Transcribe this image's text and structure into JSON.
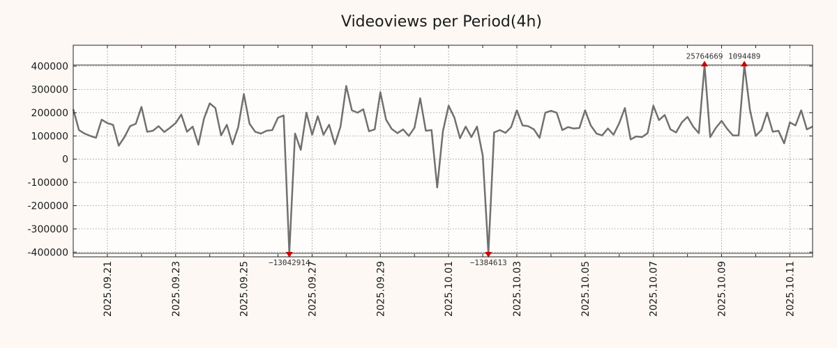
{
  "chart_data": {
    "type": "line",
    "title": "Videoviews per Period(4h)",
    "xlabel": "",
    "ylabel": "",
    "ylim": [
      -420000,
      490000
    ],
    "xlim": [
      "2025-09-20T00:00",
      "2025-10-11T16:00"
    ],
    "yticks": [
      -400000,
      -300000,
      -200000,
      -100000,
      0,
      100000,
      200000,
      300000,
      400000
    ],
    "ytick_labels": [
      "-400000",
      "-300000",
      "-200000",
      "-100000",
      "0",
      "100000",
      "200000",
      "300000",
      "400000"
    ],
    "xticks": [
      "2025-09-21",
      "2025-09-23",
      "2025-09-25",
      "2025-09-27",
      "2025-09-29",
      "2025-10-01",
      "2025-10-03",
      "2025-10-05",
      "2025-10-07",
      "2025-10-09",
      "2025-10-11"
    ],
    "xtick_labels": [
      "2025.09.21",
      "2025.09.23",
      "2025.09.25",
      "2025.09.27",
      "2025.09.29",
      "2025.10.01",
      "2025.10.03",
      "2025.10.05",
      "2025.10.07",
      "2025.10.09",
      "2025.10.11"
    ],
    "grid": true,
    "clip_lines": [
      405000,
      -405000
    ],
    "series": [
      {
        "name": "Videoviews",
        "color": "#707070",
        "points": [
          [
            "2025-09-20T00:00",
            215000
          ],
          [
            "2025-09-20T04:00",
            125000
          ],
          [
            "2025-09-20T08:00",
            110000
          ],
          [
            "2025-09-20T12:00",
            100000
          ],
          [
            "2025-09-20T16:00",
            92000
          ],
          [
            "2025-09-20T20:00",
            170000
          ],
          [
            "2025-09-21T00:00",
            155000
          ],
          [
            "2025-09-21T04:00",
            148000
          ],
          [
            "2025-09-21T08:00",
            58000
          ],
          [
            "2025-09-21T12:00",
            95000
          ],
          [
            "2025-09-21T16:00",
            142000
          ],
          [
            "2025-09-21T20:00",
            152000
          ],
          [
            "2025-09-22T00:00",
            225000
          ],
          [
            "2025-09-22T04:00",
            118000
          ],
          [
            "2025-09-22T08:00",
            122000
          ],
          [
            "2025-09-22T12:00",
            142000
          ],
          [
            "2025-09-22T16:00",
            117000
          ],
          [
            "2025-09-22T20:00",
            135000
          ],
          [
            "2025-09-23T00:00",
            155000
          ],
          [
            "2025-09-23T04:00",
            192000
          ],
          [
            "2025-09-23T08:00",
            118000
          ],
          [
            "2025-09-23T12:00",
            140000
          ],
          [
            "2025-09-23T16:00",
            62000
          ],
          [
            "2025-09-23T20:00",
            175000
          ],
          [
            "2025-09-24T00:00",
            240000
          ],
          [
            "2025-09-24T04:00",
            220000
          ],
          [
            "2025-09-24T08:00",
            102000
          ],
          [
            "2025-09-24T12:00",
            148000
          ],
          [
            "2025-09-24T16:00",
            64000
          ],
          [
            "2025-09-24T20:00",
            138000
          ],
          [
            "2025-09-25T00:00",
            280000
          ],
          [
            "2025-09-25T04:00",
            152000
          ],
          [
            "2025-09-25T08:00",
            118000
          ],
          [
            "2025-09-25T12:00",
            110000
          ],
          [
            "2025-09-25T16:00",
            122000
          ],
          [
            "2025-09-25T20:00",
            125000
          ],
          [
            "2025-09-26T00:00",
            178000
          ],
          [
            "2025-09-26T04:00",
            188000
          ],
          [
            "2025-09-26T08:00",
            -405000
          ],
          [
            "2025-09-26T12:00",
            110000
          ],
          [
            "2025-09-26T16:00",
            40000
          ],
          [
            "2025-09-26T20:00",
            200000
          ],
          [
            "2025-09-27T00:00",
            105000
          ],
          [
            "2025-09-27T04:00",
            185000
          ],
          [
            "2025-09-27T08:00",
            105000
          ],
          [
            "2025-09-27T12:00",
            148000
          ],
          [
            "2025-09-27T16:00",
            64000
          ],
          [
            "2025-09-27T20:00",
            140000
          ],
          [
            "2025-09-28T00:00",
            315000
          ],
          [
            "2025-09-28T04:00",
            210000
          ],
          [
            "2025-09-28T08:00",
            200000
          ],
          [
            "2025-09-28T12:00",
            215000
          ],
          [
            "2025-09-28T16:00",
            120000
          ],
          [
            "2025-09-28T20:00",
            128000
          ],
          [
            "2025-09-29T00:00",
            288000
          ],
          [
            "2025-09-29T04:00",
            170000
          ],
          [
            "2025-09-29T08:00",
            130000
          ],
          [
            "2025-09-29T12:00",
            112000
          ],
          [
            "2025-09-29T16:00",
            128000
          ],
          [
            "2025-09-29T20:00",
            100000
          ],
          [
            "2025-09-30T00:00",
            135000
          ],
          [
            "2025-09-30T04:00",
            262000
          ],
          [
            "2025-09-30T08:00",
            122000
          ],
          [
            "2025-09-30T12:00",
            125000
          ],
          [
            "2025-09-30T16:00",
            -122000
          ],
          [
            "2025-09-30T20:00",
            120000
          ],
          [
            "2025-10-01T00:00",
            230000
          ],
          [
            "2025-10-01T04:00",
            180000
          ],
          [
            "2025-10-01T08:00",
            90000
          ],
          [
            "2025-10-01T12:00",
            140000
          ],
          [
            "2025-10-01T16:00",
            95000
          ],
          [
            "2025-10-01T20:00",
            140000
          ],
          [
            "2025-10-02T00:00",
            15000
          ],
          [
            "2025-10-02T04:00",
            -405000
          ],
          [
            "2025-10-02T08:00",
            115000
          ],
          [
            "2025-10-02T12:00",
            125000
          ],
          [
            "2025-10-02T16:00",
            113000
          ],
          [
            "2025-10-02T20:00",
            138000
          ],
          [
            "2025-10-03T00:00",
            210000
          ],
          [
            "2025-10-03T04:00",
            145000
          ],
          [
            "2025-10-03T08:00",
            142000
          ],
          [
            "2025-10-03T12:00",
            128000
          ],
          [
            "2025-10-03T16:00",
            92000
          ],
          [
            "2025-10-03T20:00",
            200000
          ],
          [
            "2025-10-04T00:00",
            208000
          ],
          [
            "2025-10-04T04:00",
            200000
          ],
          [
            "2025-10-04T08:00",
            125000
          ],
          [
            "2025-10-04T12:00",
            138000
          ],
          [
            "2025-10-04T16:00",
            132000
          ],
          [
            "2025-10-04T20:00",
            134000
          ],
          [
            "2025-10-05T00:00",
            210000
          ],
          [
            "2025-10-05T04:00",
            145000
          ],
          [
            "2025-10-05T08:00",
            110000
          ],
          [
            "2025-10-05T12:00",
            102000
          ],
          [
            "2025-10-05T16:00",
            132000
          ],
          [
            "2025-10-05T20:00",
            105000
          ],
          [
            "2025-10-06T00:00",
            155000
          ],
          [
            "2025-10-06T04:00",
            220000
          ],
          [
            "2025-10-06T08:00",
            85000
          ],
          [
            "2025-10-06T12:00",
            98000
          ],
          [
            "2025-10-06T16:00",
            95000
          ],
          [
            "2025-10-06T20:00",
            112000
          ],
          [
            "2025-10-07T00:00",
            230000
          ],
          [
            "2025-10-07T04:00",
            168000
          ],
          [
            "2025-10-07T08:00",
            190000
          ],
          [
            "2025-10-07T12:00",
            128000
          ],
          [
            "2025-10-07T16:00",
            115000
          ],
          [
            "2025-10-07T20:00",
            158000
          ],
          [
            "2025-10-08T00:00",
            182000
          ],
          [
            "2025-10-08T04:00",
            140000
          ],
          [
            "2025-10-08T08:00",
            112000
          ],
          [
            "2025-10-08T12:00",
            405000
          ],
          [
            "2025-10-08T16:00",
            95000
          ],
          [
            "2025-10-08T20:00",
            135000
          ],
          [
            "2025-10-09T00:00",
            165000
          ],
          [
            "2025-10-09T04:00",
            130000
          ],
          [
            "2025-10-09T08:00",
            102000
          ],
          [
            "2025-10-09T12:00",
            102000
          ],
          [
            "2025-10-09T16:00",
            405000
          ],
          [
            "2025-10-09T20:00",
            210000
          ],
          [
            "2025-10-10T00:00",
            100000
          ],
          [
            "2025-10-10T04:00",
            125000
          ],
          [
            "2025-10-10T08:00",
            200000
          ],
          [
            "2025-10-10T12:00",
            118000
          ],
          [
            "2025-10-10T16:00",
            122000
          ],
          [
            "2025-10-10T20:00",
            68000
          ],
          [
            "2025-10-11T00:00",
            158000
          ],
          [
            "2025-10-11T04:00",
            145000
          ],
          [
            "2025-10-11T08:00",
            210000
          ],
          [
            "2025-10-11T12:00",
            128000
          ],
          [
            "2025-10-11T16:00",
            140000
          ]
        ]
      }
    ],
    "annotations": [
      {
        "x": "2025-09-26T08:00",
        "y": -405000,
        "label": "−13042914",
        "direction": "down",
        "color": "#cc0000"
      },
      {
        "x": "2025-10-02T04:00",
        "y": -405000,
        "label": "−1384613",
        "direction": "down",
        "color": "#cc0000"
      },
      {
        "x": "2025-10-08T12:00",
        "y": 405000,
        "label": "25764669",
        "direction": "up",
        "color": "#cc0000"
      },
      {
        "x": "2025-10-09T16:00",
        "y": 405000,
        "label": "1094489",
        "direction": "up",
        "color": "#cc0000"
      }
    ]
  }
}
